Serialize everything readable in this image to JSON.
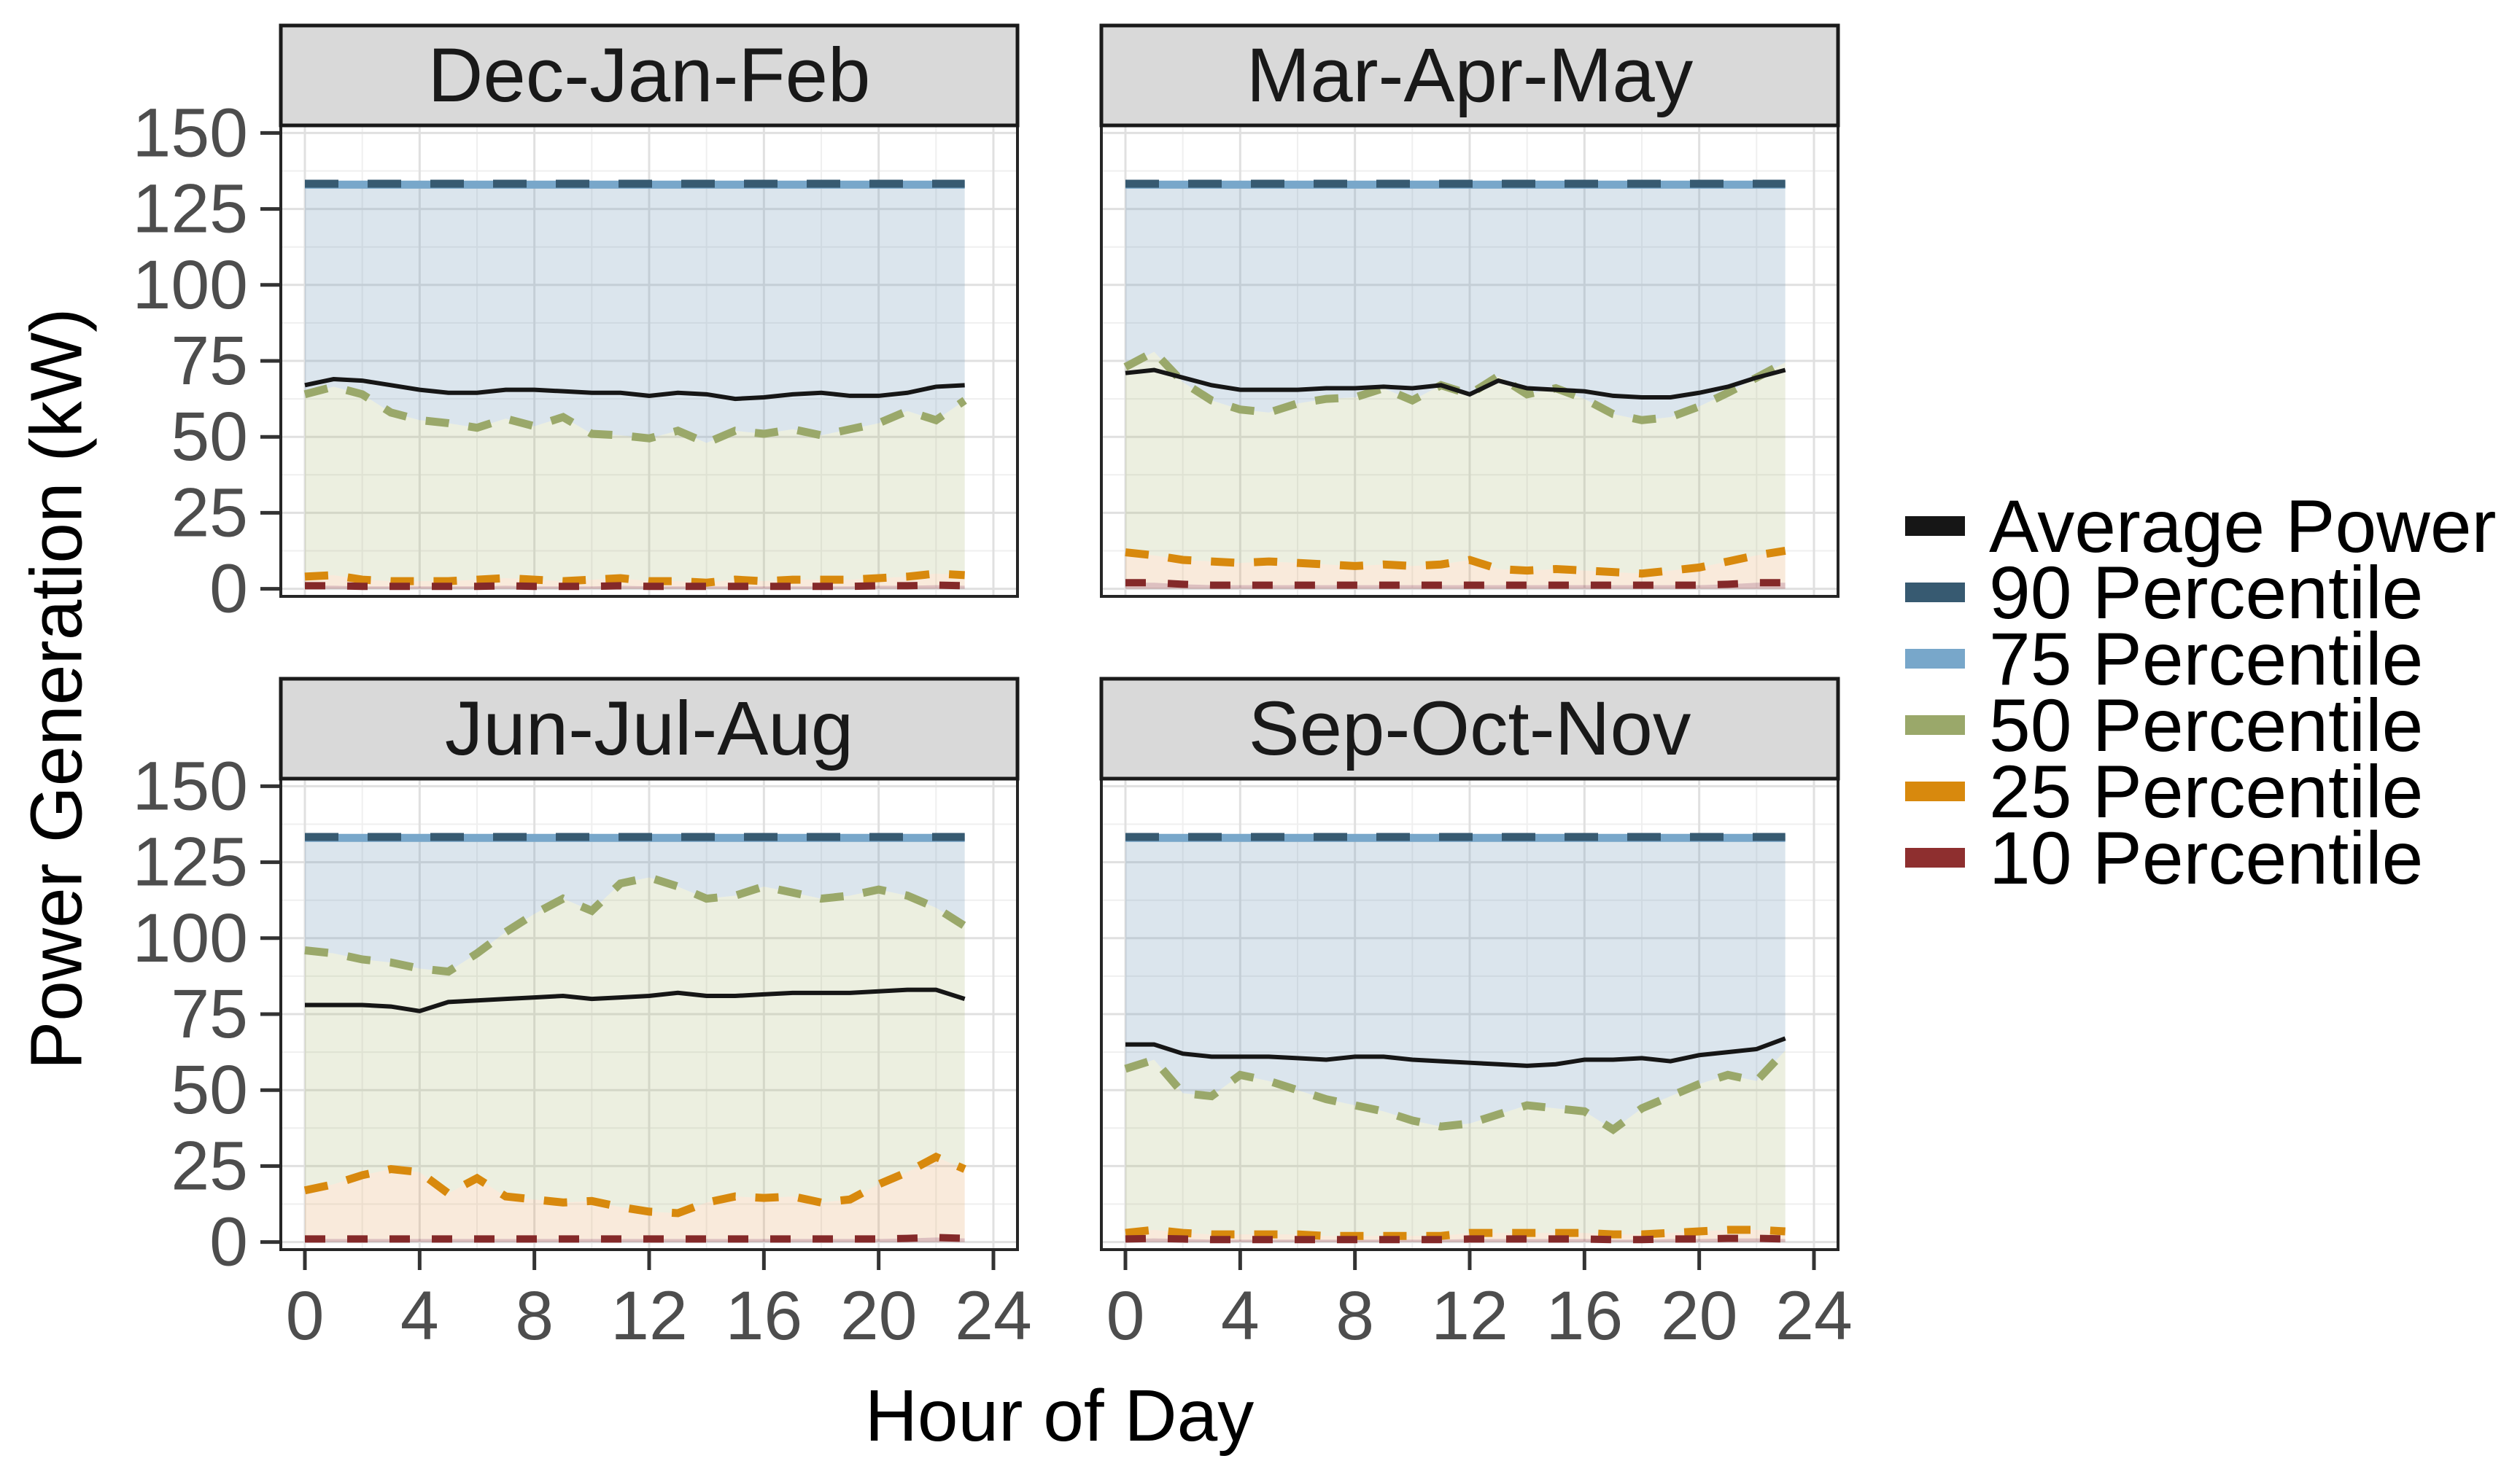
{
  "figure": {
    "background": "#ffffff"
  },
  "y_axis": {
    "title": "Power Generation (kW)",
    "tick_labels": [
      "150",
      "125",
      "100",
      "75",
      "50",
      "25",
      "0"
    ],
    "tick_values": [
      150,
      125,
      100,
      75,
      50,
      25,
      0
    ],
    "text_color": "#4d4d4d"
  },
  "x_axis": {
    "title": "Hour of Day",
    "tick_labels": [
      "0",
      "4",
      "8",
      "12",
      "16",
      "20",
      "24"
    ],
    "tick_values": [
      0,
      4,
      8,
      12,
      16,
      20,
      24
    ],
    "text_color": "#4d4d4d"
  },
  "legend": {
    "items": [
      {
        "label": "Average Power",
        "color": "#161616"
      },
      {
        "label": "90 Percentile",
        "color": "#375a71"
      },
      {
        "label": "75 Percentile",
        "color": "#78a7ca"
      },
      {
        "label": "50 Percentile",
        "color": "#9aa86a"
      },
      {
        "label": "25 Percentile",
        "color": "#d8890d"
      },
      {
        "label": "10 Percentile",
        "color": "#8e2f2f"
      }
    ]
  },
  "chart_data": {
    "type": "line",
    "xlabel": "Hour of Day",
    "ylabel": "Power Generation (kW)",
    "xlim": [
      0,
      24
    ],
    "ylim": [
      0,
      150
    ],
    "grid": true,
    "legend_position": "right",
    "x": [
      0,
      1,
      2,
      3,
      4,
      5,
      6,
      7,
      8,
      9,
      10,
      11,
      12,
      13,
      14,
      15,
      16,
      17,
      18,
      19,
      20,
      21,
      22,
      23
    ],
    "strip_fill": "#d9d9d9",
    "panel_border_color": "#262626",
    "grid_major_color": "#e0e0e0",
    "grid_minor_color": "#efefef",
    "series_styles": {
      "p75": {
        "color": "#78a7ca",
        "width": 11,
        "dash": null
      },
      "p90": {
        "color": "#375a71",
        "width": 11,
        "dash": [
          46,
          40
        ]
      },
      "p50": {
        "color": "#9aa86a",
        "width": 11,
        "dash": [
          32,
          27
        ]
      },
      "p25": {
        "color": "#d8890d",
        "width": 11,
        "dash": [
          32,
          27
        ]
      },
      "p10": {
        "color": "#842929",
        "width": 10,
        "dash": [
          28,
          30
        ]
      },
      "average": {
        "color": "#161616",
        "width": 6,
        "dash": null
      }
    },
    "bands": [
      {
        "lower": "zero",
        "upper": "p10",
        "fill": "rgba(142,47,47,0.30)",
        "name": "band-0-p10"
      },
      {
        "lower": "p10",
        "upper": "p25",
        "fill": "rgba(224,148,74,0.20)",
        "name": "band-p10-p25"
      },
      {
        "lower": "p25",
        "upper": "p50",
        "fill": "rgba(168,180,114,0.22)",
        "name": "band-p25-p50"
      },
      {
        "lower": "p50",
        "upper": "p75",
        "fill": "rgba(125,160,190,0.28)",
        "name": "band-p50-p75"
      }
    ],
    "panels": [
      {
        "title": "Dec-Jan-Feb",
        "series": {
          "average": [
            67,
            69,
            68.5,
            67,
            65.5,
            64.5,
            64.5,
            65.5,
            65.5,
            65,
            64.5,
            64.5,
            63.5,
            64.5,
            64,
            62.5,
            63,
            64,
            64.5,
            63.5,
            63.5,
            64.5,
            66.5,
            67
          ],
          "p90": 133.3,
          "p75": 133,
          "p50": [
            64,
            66.5,
            64,
            58,
            55.5,
            54.5,
            53,
            56,
            53.5,
            56.5,
            51,
            50.5,
            49.5,
            52,
            48,
            52,
            51,
            52.5,
            50.5,
            52.5,
            54.5,
            58.5,
            55.5,
            62
          ],
          "p25": [
            4,
            4.5,
            3,
            2.5,
            2.5,
            2.5,
            3,
            3.5,
            3,
            2.5,
            3,
            3.5,
            2.5,
            2.5,
            2,
            3,
            2.5,
            3,
            3,
            3,
            3.5,
            4,
            5,
            4.5
          ],
          "p10": [
            1,
            1,
            0.8,
            0.8,
            0.8,
            0.8,
            0.8,
            1,
            0.8,
            0.8,
            0.8,
            1,
            0.8,
            0.8,
            0.8,
            0.8,
            0.8,
            0.8,
            0.8,
            0.8,
            1,
            1,
            1.2,
            1
          ]
        }
      },
      {
        "title": "Mar-Apr-May",
        "series": {
          "average": [
            71,
            72,
            69.5,
            67,
            65.5,
            65.5,
            65.5,
            66,
            66,
            66.5,
            66,
            67,
            64,
            68.5,
            66,
            65.5,
            65,
            63.5,
            63,
            63,
            64.5,
            66.5,
            69.5,
            72
          ],
          "p90": 133.3,
          "p75": 133,
          "p50": [
            73,
            78,
            68,
            62,
            59,
            58,
            61,
            62.5,
            63,
            66,
            62,
            67,
            64,
            70,
            64,
            66,
            62.5,
            57.5,
            55.5,
            56.5,
            60,
            64.5,
            69.5,
            74.5
          ],
          "p25": [
            12,
            11,
            9.5,
            9,
            8.5,
            9,
            8.5,
            8,
            7.5,
            8,
            7.5,
            8,
            9.5,
            6.5,
            6,
            6.5,
            6,
            5.5,
            5,
            6,
            7,
            9,
            11,
            12.5
          ],
          "p10": [
            2,
            2,
            1.5,
            1.2,
            1.2,
            1.2,
            1.2,
            1.2,
            1.2,
            1.2,
            1.2,
            1.2,
            1.2,
            1.2,
            1.2,
            1.2,
            1.2,
            1.2,
            1.2,
            1.2,
            1.2,
            1.5,
            2,
            2
          ]
        }
      },
      {
        "title": "Jun-Jul-Aug",
        "series": {
          "average": [
            78,
            78,
            78,
            77.5,
            76,
            79,
            79.5,
            80,
            80.5,
            81,
            80,
            80.5,
            81,
            82,
            81,
            81,
            81.5,
            82,
            82,
            82,
            82.5,
            83,
            83,
            80
          ],
          "p90": 133.3,
          "p75": 133,
          "p50": [
            96,
            95,
            93,
            92,
            90,
            89,
            95,
            102,
            108,
            113,
            109,
            118,
            120,
            117,
            113,
            114,
            117,
            115,
            113,
            114,
            116,
            114,
            110,
            104
          ],
          "p25": [
            17,
            19,
            22,
            24,
            23,
            16,
            21,
            15,
            14,
            13,
            13.5,
            11.5,
            10,
            9.5,
            13,
            15,
            14.5,
            15,
            13,
            14,
            19,
            23,
            28,
            24
          ],
          "p10": [
            1,
            1,
            1,
            1,
            1,
            1,
            1,
            1,
            1,
            1,
            1,
            1,
            1,
            1,
            1,
            1,
            1,
            1,
            1,
            1,
            1,
            1.2,
            1.5,
            1.2
          ]
        }
      },
      {
        "title": "Sep-Oct-Nov",
        "series": {
          "average": [
            65,
            65,
            62,
            61,
            61,
            61,
            60.5,
            60,
            61,
            61,
            60,
            59.5,
            59,
            58.5,
            58,
            58.5,
            60,
            60,
            60.5,
            59.5,
            61.5,
            62.5,
            63.5,
            67
          ],
          "p90": 133.3,
          "p75": 133,
          "p50": [
            57,
            60,
            49,
            48,
            55,
            53,
            50,
            47,
            45,
            43,
            40,
            38,
            39,
            42,
            45,
            44,
            43,
            37,
            44,
            48,
            52,
            55,
            53,
            63
          ],
          "p25": [
            3,
            4,
            3,
            2.5,
            2.5,
            2.5,
            2.5,
            2,
            2,
            2,
            2,
            2,
            3,
            3,
            3,
            3,
            3,
            2.5,
            2.5,
            3,
            3.5,
            4,
            4,
            3.5
          ],
          "p10": [
            1,
            1.2,
            1,
            0.8,
            0.8,
            0.8,
            0.8,
            0.8,
            0.8,
            0.8,
            0.8,
            0.8,
            1,
            1,
            1,
            1,
            1,
            0.8,
            0.8,
            1,
            1,
            1.2,
            1.2,
            1
          ]
        }
      }
    ]
  }
}
